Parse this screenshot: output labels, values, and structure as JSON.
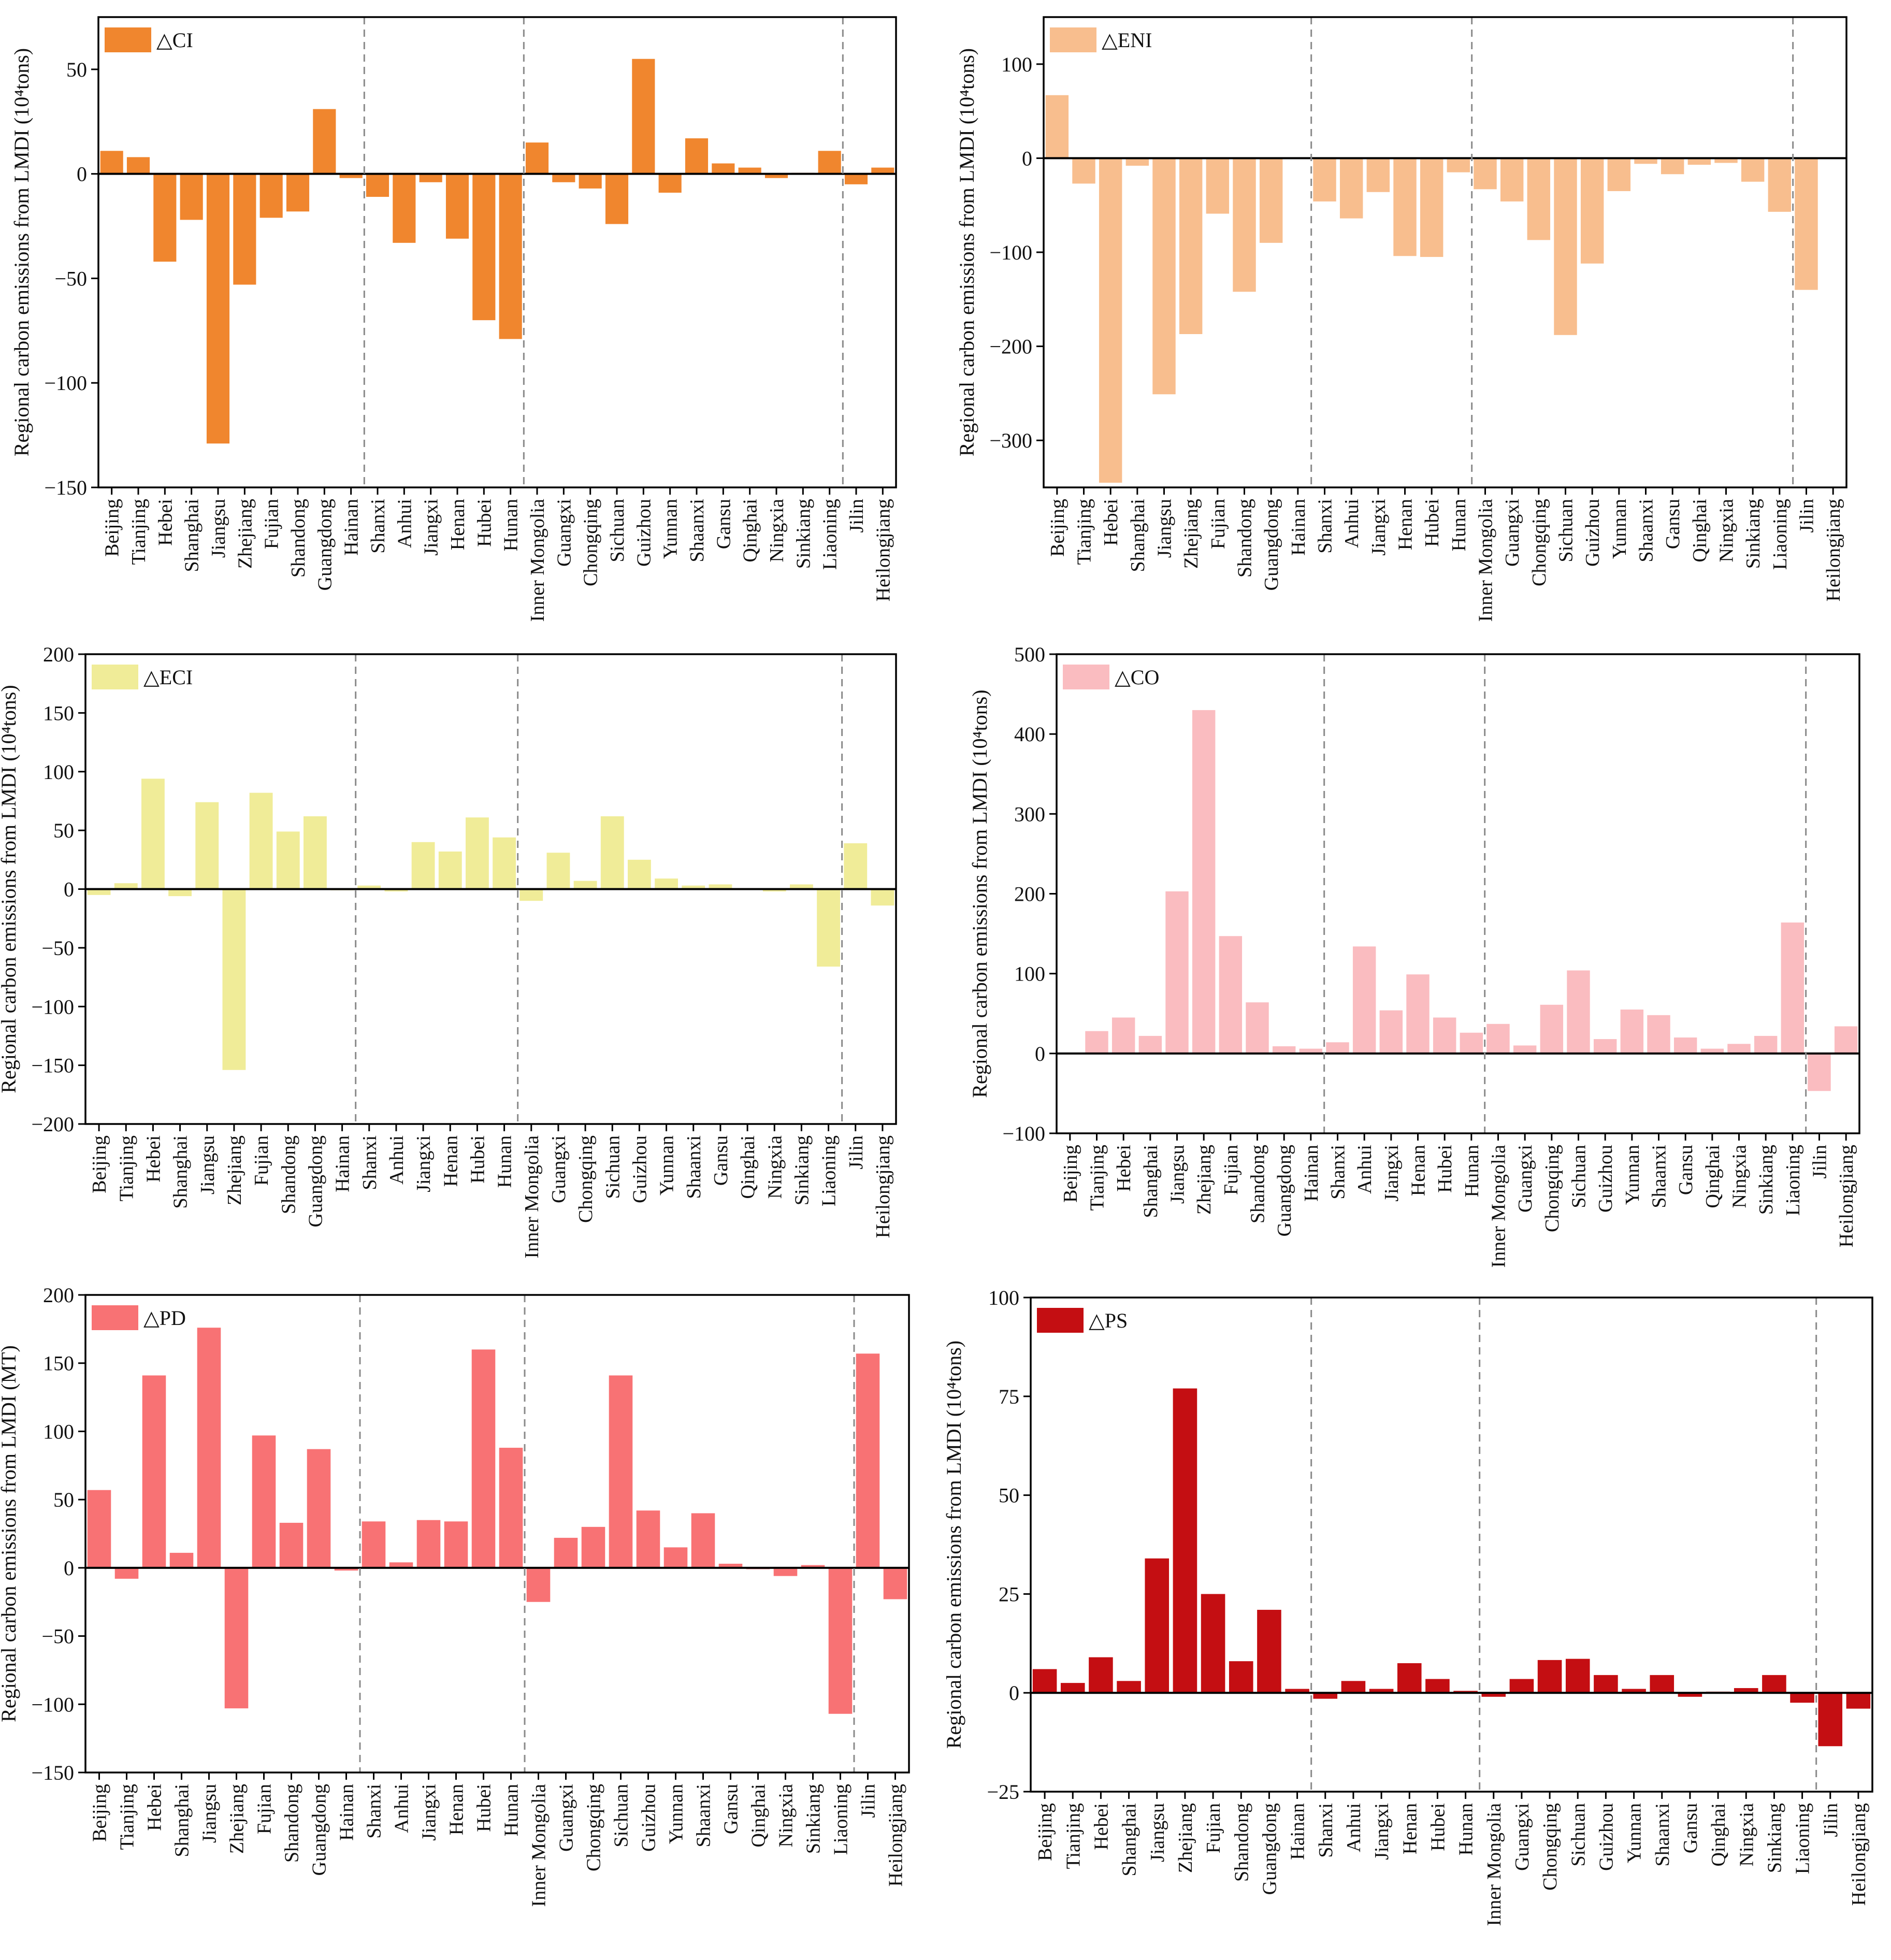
{
  "chart_data": [
    {
      "type": "bar",
      "legend": "△CI",
      "color": "#F0862E",
      "ylabel": "Regional carbon emissions from LMDI (10⁴tons)",
      "ylim": [
        -150,
        75
      ],
      "yticks": [
        -150,
        -100,
        -50,
        0,
        50
      ],
      "ytick_labels": [
        "−150",
        "−100",
        "−50",
        "0",
        "50"
      ],
      "separators_after": [
        9,
        15,
        27
      ],
      "categories": [
        "Beijing",
        "Tianjing",
        "Hebei",
        "Shanghai",
        "Jiangsu",
        "Zhejiang",
        "Fujian",
        "Shandong",
        "Guangdong",
        "Hainan",
        "Shanxi",
        "Anhui",
        "Jiangxi",
        "Henan",
        "Hubei",
        "Hunan",
        "Inner Mongolia",
        "Guangxi",
        "Chongqing",
        "Sichuan",
        "Guizhou",
        "Yunnan",
        "Shaanxi",
        "Gansu",
        "Qinghai",
        "Ningxia",
        "Sinkiang",
        "Liaoning",
        "Jilin",
        "Heilongjiang"
      ],
      "values": [
        11,
        8,
        -42,
        -22,
        -129,
        -53,
        -21,
        -18,
        31,
        -2,
        -11,
        -33,
        -4,
        -31,
        -70,
        -79,
        15,
        -4,
        -7,
        -24,
        55,
        -9,
        17,
        5,
        3,
        -2,
        0.5,
        11,
        -5,
        3
      ]
    },
    {
      "type": "bar",
      "legend": "△ENI",
      "color": "#F8BE8E",
      "ylabel": "Regional carbon emissions from LMDI (10⁴tons)",
      "ylim": [
        -350,
        150
      ],
      "yticks": [
        -300,
        -200,
        -100,
        0,
        100
      ],
      "ytick_labels": [
        "−300",
        "−200",
        "−100",
        "0",
        "100"
      ],
      "separators_after": [
        9,
        15,
        27
      ],
      "categories": [
        "Beijing",
        "Tianjing",
        "Hebei",
        "Shanghai",
        "Jiangsu",
        "Zhejiang",
        "Fujian",
        "Shandong",
        "Guangdong",
        "Hainan",
        "Shanxi",
        "Anhui",
        "Jiangxi",
        "Henan",
        "Hubei",
        "Hunan",
        "Inner Mongolia",
        "Guangxi",
        "Chongqing",
        "Sichuan",
        "Guizhou",
        "Yunnan",
        "Shaanxi",
        "Gansu",
        "Qinghai",
        "Ningxia",
        "Sinkiang",
        "Liaoning",
        "Jilin",
        "Heilongjiang"
      ],
      "values": [
        67,
        -27,
        -345,
        -8,
        -251,
        -187,
        -59,
        -142,
        -90,
        0,
        -46,
        -64,
        -36,
        -104,
        -105,
        -15,
        -33,
        -46,
        -87,
        -188,
        -112,
        -35,
        -6,
        -17,
        -7,
        -5,
        -25,
        -57,
        -140,
        0
      ]
    },
    {
      "type": "bar",
      "legend": "△ECI",
      "color": "#F0EC98",
      "ylabel": "Regional carbon emissions from LMDI (10⁴tons)",
      "ylim": [
        -200,
        200
      ],
      "yticks": [
        -200,
        -150,
        -100,
        -50,
        0,
        50,
        100,
        150,
        200
      ],
      "ytick_labels": [
        "−200",
        "−150",
        "−100",
        "−50",
        "0",
        "50",
        "100",
        "150",
        "200"
      ],
      "separators_after": [
        9,
        15,
        27
      ],
      "categories": [
        "Beijing",
        "Tianjing",
        "Hebei",
        "Shanghai",
        "Jiangsu",
        "Zhejiang",
        "Fujian",
        "Shandong",
        "Guangdong",
        "Hainan",
        "Shanxi",
        "Anhui",
        "Jiangxi",
        "Henan",
        "Hubei",
        "Hunan",
        "Inner Mongolia",
        "Guangxi",
        "Chongqing",
        "Sichuan",
        "Guizhou",
        "Yunnan",
        "Shaanxi",
        "Gansu",
        "Qinghai",
        "Ningxia",
        "Sinkiang",
        "Liaoning",
        "Jilin",
        "Heilongjiang"
      ],
      "values": [
        -5,
        5,
        94,
        -6,
        74,
        -154,
        82,
        49,
        62,
        -1,
        3,
        -2,
        40,
        32,
        61,
        44,
        -10,
        31,
        7,
        62,
        25,
        9,
        3,
        4,
        0,
        -2,
        4,
        -66,
        39,
        -14
      ]
    },
    {
      "type": "bar",
      "legend": "△CO",
      "color": "#FABCC0",
      "ylabel": "Regional carbon emissions from LMDI (10⁴tons)",
      "ylim": [
        -100,
        500
      ],
      "yticks": [
        -100,
        0,
        100,
        200,
        300,
        400,
        500
      ],
      "ytick_labels": [
        "−100",
        "0",
        "100",
        "200",
        "300",
        "400",
        "500"
      ],
      "separators_after": [
        9,
        15,
        27
      ],
      "categories": [
        "Beijing",
        "Tianjing",
        "Hebei",
        "Shanghai",
        "Jiangsu",
        "Zhejiang",
        "Fujian",
        "Shandong",
        "Guangdong",
        "Hainan",
        "Shanxi",
        "Anhui",
        "Jiangxi",
        "Henan",
        "Hubei",
        "Hunan",
        "Inner Mongolia",
        "Guangxi",
        "Chongqing",
        "Sichuan",
        "Guizhou",
        "Yunnan",
        "Shaanxi",
        "Gansu",
        "Qinghai",
        "Ningxia",
        "Sinkiang",
        "Liaoning",
        "Jilin",
        "Heilongjiang"
      ],
      "values": [
        0,
        28,
        45,
        22,
        203,
        430,
        147,
        64,
        9,
        6,
        14,
        134,
        54,
        99,
        45,
        26,
        37,
        10,
        61,
        104,
        18,
        55,
        48,
        20,
        6,
        12,
        22,
        164,
        -47,
        34
      ]
    },
    {
      "type": "bar",
      "legend": "△PD",
      "color": "#F87274",
      "ylabel": "Regional carbon emissions from LMDI (MT)",
      "ylim": [
        -150,
        200
      ],
      "yticks": [
        -150,
        -100,
        -50,
        0,
        50,
        100,
        150,
        200
      ],
      "ytick_labels": [
        "−150",
        "−100",
        "−50",
        "0",
        "50",
        "100",
        "150",
        "200"
      ],
      "separators_after": [
        9,
        15,
        27
      ],
      "categories": [
        "Beijing",
        "Tianjing",
        "Hebei",
        "Shanghai",
        "Jiangsu",
        "Zhejiang",
        "Fujian",
        "Shandong",
        "Guangdong",
        "Hainan",
        "Shanxi",
        "Anhui",
        "Jiangxi",
        "Henan",
        "Hubei",
        "Hunan",
        "Inner Mongolia",
        "Guangxi",
        "Chongqing",
        "Sichuan",
        "Guizhou",
        "Yunnan",
        "Shaanxi",
        "Gansu",
        "Qinghai",
        "Ningxia",
        "Sinkiang",
        "Liaoning",
        "Jilin",
        "Heilongjiang"
      ],
      "values": [
        57,
        -8,
        141,
        11,
        176,
        -103,
        97,
        33,
        87,
        -2,
        34,
        4,
        35,
        34,
        160,
        88,
        -25,
        22,
        30,
        141,
        42,
        15,
        40,
        3,
        -1,
        -6,
        2,
        -107,
        157,
        -23
      ]
    },
    {
      "type": "bar",
      "legend": "△PS",
      "color": "#C40E12",
      "ylabel": "Regional carbon emissions from LMDI (10⁴tons)",
      "ylim": [
        -25,
        100
      ],
      "yticks": [
        -25,
        0,
        25,
        50,
        75,
        100
      ],
      "ytick_labels": [
        "−25",
        "0",
        "25",
        "50",
        "75",
        "100"
      ],
      "separators_after": [
        9,
        15,
        27
      ],
      "categories": [
        "Beijing",
        "Tianjing",
        "Hebei",
        "Shanghai",
        "Jiangsu",
        "Zhejiang",
        "Fujian",
        "Shandong",
        "Guangdong",
        "Hainan",
        "Shanxi",
        "Anhui",
        "Jiangxi",
        "Henan",
        "Hubei",
        "Hunan",
        "Inner Mongolia",
        "Guangxi",
        "Chongqing",
        "Sichuan",
        "Guizhou",
        "Yunnan",
        "Shaanxi",
        "Gansu",
        "Qinghai",
        "Ningxia",
        "Sinkiang",
        "Liaoning",
        "Jilin",
        "Heilongjiang"
      ],
      "values": [
        6,
        2.5,
        9,
        3,
        34,
        77,
        25,
        8,
        21,
        1,
        -1.5,
        3,
        1,
        7.5,
        3.5,
        0.5,
        -1,
        3.5,
        8.3,
        8.6,
        4.5,
        1,
        4.5,
        -1,
        0.3,
        1.2,
        4.5,
        -2.5,
        -13.5,
        -4
      ]
    }
  ]
}
